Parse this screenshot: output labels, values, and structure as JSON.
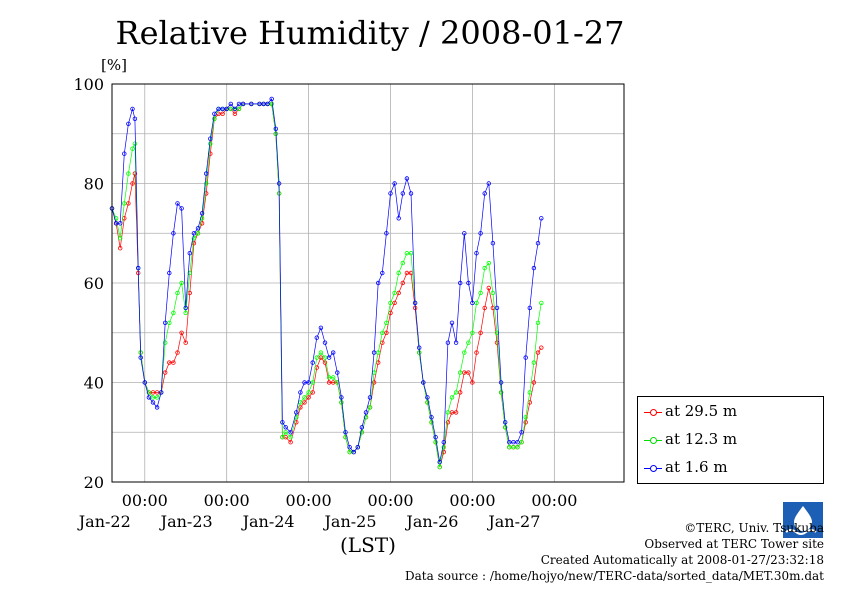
{
  "chart_data": {
    "type": "line",
    "title": "Relative Humidity / 2008-01-27",
    "ylabel": "[%]",
    "xlabel": "(LST)",
    "ylim": [
      20,
      100
    ],
    "yticks": [
      "20",
      "40",
      "60",
      "80",
      "100"
    ],
    "xlim_days": [
      21.6,
      27.85
    ],
    "xtick_time_label": "00:00",
    "xtick_dates": [
      "Jan-22",
      "Jan-23",
      "Jan-24",
      "Jan-25",
      "Jan-26",
      "Jan-27"
    ],
    "grid": true,
    "legend_position": "bottom-right",
    "series": [
      {
        "name": "at 29.5 m",
        "color": "#ff0000",
        "points": [
          [
            21.6,
            75
          ],
          [
            21.65,
            72
          ],
          [
            21.7,
            67
          ],
          [
            21.75,
            73
          ],
          [
            21.8,
            76
          ],
          [
            21.85,
            80
          ],
          [
            21.88,
            82
          ],
          [
            21.92,
            62
          ],
          [
            21.95,
            46
          ],
          [
            22.0,
            40
          ],
          [
            22.05,
            38
          ],
          [
            22.1,
            38
          ],
          [
            22.15,
            38
          ],
          [
            22.2,
            38
          ],
          [
            22.25,
            42
          ],
          [
            22.3,
            44
          ],
          [
            22.35,
            44
          ],
          [
            22.4,
            46
          ],
          [
            22.45,
            50
          ],
          [
            22.5,
            48
          ],
          [
            22.55,
            58
          ],
          [
            22.6,
            68
          ],
          [
            22.65,
            70
          ],
          [
            22.7,
            72
          ],
          [
            22.75,
            78
          ],
          [
            22.8,
            86
          ],
          [
            22.85,
            93
          ],
          [
            22.9,
            94
          ],
          [
            22.95,
            94
          ],
          [
            23.0,
            95
          ],
          [
            23.05,
            95
          ],
          [
            23.1,
            94
          ],
          [
            23.15,
            95
          ],
          [
            23.2,
            96
          ],
          [
            23.3,
            96
          ],
          [
            23.4,
            96
          ],
          [
            23.45,
            96
          ],
          [
            23.5,
            96
          ],
          [
            23.55,
            96
          ],
          [
            23.6,
            90
          ],
          [
            23.64,
            78
          ],
          [
            23.68,
            29
          ],
          [
            23.72,
            29
          ],
          [
            23.78,
            28
          ],
          [
            23.85,
            32
          ],
          [
            23.9,
            35
          ],
          [
            23.95,
            36
          ],
          [
            24.0,
            37
          ],
          [
            24.05,
            38
          ],
          [
            24.1,
            43
          ],
          [
            24.15,
            45
          ],
          [
            24.2,
            44
          ],
          [
            24.25,
            40
          ],
          [
            24.3,
            40
          ],
          [
            24.35,
            40
          ],
          [
            24.4,
            36
          ],
          [
            24.45,
            29
          ],
          [
            24.5,
            26
          ],
          [
            24.55,
            26
          ],
          [
            24.6,
            27
          ],
          [
            24.65,
            30
          ],
          [
            24.7,
            33
          ],
          [
            24.75,
            35
          ],
          [
            24.8,
            40
          ],
          [
            24.85,
            44
          ],
          [
            24.9,
            48
          ],
          [
            24.95,
            50
          ],
          [
            25.0,
            54
          ],
          [
            25.05,
            56
          ],
          [
            25.1,
            58
          ],
          [
            25.15,
            60
          ],
          [
            25.2,
            62
          ],
          [
            25.25,
            62
          ],
          [
            25.3,
            55
          ],
          [
            25.35,
            46
          ],
          [
            25.4,
            40
          ],
          [
            25.45,
            36
          ],
          [
            25.5,
            32
          ],
          [
            25.55,
            28
          ],
          [
            25.6,
            23
          ],
          [
            25.65,
            26
          ],
          [
            25.7,
            32
          ],
          [
            25.75,
            34
          ],
          [
            25.8,
            34
          ],
          [
            25.85,
            38
          ],
          [
            25.9,
            42
          ],
          [
            25.95,
            42
          ],
          [
            26.0,
            40
          ],
          [
            26.05,
            46
          ],
          [
            26.1,
            50
          ],
          [
            26.15,
            55
          ],
          [
            26.2,
            59
          ],
          [
            26.25,
            55
          ],
          [
            26.3,
            48
          ],
          [
            26.35,
            38
          ],
          [
            26.4,
            31
          ],
          [
            26.45,
            27
          ],
          [
            26.5,
            27
          ],
          [
            26.55,
            27
          ],
          [
            26.6,
            28
          ],
          [
            26.65,
            32
          ],
          [
            26.7,
            36
          ],
          [
            26.75,
            40
          ],
          [
            26.8,
            46
          ],
          [
            26.84,
            47
          ]
        ]
      },
      {
        "name": "at 12.3 m",
        "color": "#00ff00",
        "points": [
          [
            21.6,
            75
          ],
          [
            21.65,
            73
          ],
          [
            21.7,
            69
          ],
          [
            21.75,
            76
          ],
          [
            21.8,
            82
          ],
          [
            21.85,
            87
          ],
          [
            21.88,
            88
          ],
          [
            21.92,
            63
          ],
          [
            21.95,
            46
          ],
          [
            22.0,
            40
          ],
          [
            22.05,
            38
          ],
          [
            22.1,
            37
          ],
          [
            22.15,
            37
          ],
          [
            22.2,
            38
          ],
          [
            22.25,
            48
          ],
          [
            22.3,
            52
          ],
          [
            22.35,
            54
          ],
          [
            22.4,
            58
          ],
          [
            22.45,
            60
          ],
          [
            22.5,
            54
          ],
          [
            22.55,
            62
          ],
          [
            22.6,
            69
          ],
          [
            22.65,
            70
          ],
          [
            22.7,
            73
          ],
          [
            22.75,
            80
          ],
          [
            22.8,
            88
          ],
          [
            22.85,
            93
          ],
          [
            22.9,
            95
          ],
          [
            22.95,
            95
          ],
          [
            23.0,
            95
          ],
          [
            23.05,
            95
          ],
          [
            23.1,
            95
          ],
          [
            23.15,
            95
          ],
          [
            23.2,
            96
          ],
          [
            23.3,
            96
          ],
          [
            23.4,
            96
          ],
          [
            23.45,
            96
          ],
          [
            23.5,
            96
          ],
          [
            23.55,
            96
          ],
          [
            23.6,
            90
          ],
          [
            23.64,
            78
          ],
          [
            23.68,
            29
          ],
          [
            23.72,
            30
          ],
          [
            23.78,
            29
          ],
          [
            23.85,
            33
          ],
          [
            23.9,
            36
          ],
          [
            23.95,
            37
          ],
          [
            24.0,
            38
          ],
          [
            24.05,
            40
          ],
          [
            24.1,
            45
          ],
          [
            24.15,
            46
          ],
          [
            24.2,
            45
          ],
          [
            24.25,
            41
          ],
          [
            24.3,
            41
          ],
          [
            24.35,
            40
          ],
          [
            24.4,
            36
          ],
          [
            24.45,
            29
          ],
          [
            24.5,
            26
          ],
          [
            24.55,
            26
          ],
          [
            24.6,
            27
          ],
          [
            24.65,
            30
          ],
          [
            24.7,
            33
          ],
          [
            24.75,
            35
          ],
          [
            24.8,
            42
          ],
          [
            24.85,
            46
          ],
          [
            24.9,
            50
          ],
          [
            24.95,
            52
          ],
          [
            25.0,
            56
          ],
          [
            25.05,
            58
          ],
          [
            25.1,
            62
          ],
          [
            25.15,
            64
          ],
          [
            25.2,
            66
          ],
          [
            25.25,
            66
          ],
          [
            25.3,
            56
          ],
          [
            25.35,
            46
          ],
          [
            25.4,
            40
          ],
          [
            25.45,
            36
          ],
          [
            25.5,
            32
          ],
          [
            25.55,
            28
          ],
          [
            25.6,
            23
          ],
          [
            25.65,
            27
          ],
          [
            25.7,
            34
          ],
          [
            25.75,
            37
          ],
          [
            25.8,
            38
          ],
          [
            25.85,
            42
          ],
          [
            25.9,
            46
          ],
          [
            25.95,
            48
          ],
          [
            26.0,
            50
          ],
          [
            26.05,
            56
          ],
          [
            26.1,
            58
          ],
          [
            26.15,
            63
          ],
          [
            26.2,
            64
          ],
          [
            26.25,
            58
          ],
          [
            26.3,
            50
          ],
          [
            26.35,
            38
          ],
          [
            26.4,
            31
          ],
          [
            26.45,
            27
          ],
          [
            26.5,
            27
          ],
          [
            26.55,
            27
          ],
          [
            26.6,
            28
          ],
          [
            26.65,
            33
          ],
          [
            26.7,
            38
          ],
          [
            26.75,
            44
          ],
          [
            26.8,
            52
          ],
          [
            26.84,
            56
          ]
        ]
      },
      {
        "name": "at 1.6 m",
        "color": "#0000ff",
        "points": [
          [
            21.6,
            75
          ],
          [
            21.65,
            72
          ],
          [
            21.7,
            72
          ],
          [
            21.75,
            86
          ],
          [
            21.8,
            92
          ],
          [
            21.85,
            95
          ],
          [
            21.88,
            93
          ],
          [
            21.92,
            63
          ],
          [
            21.95,
            45
          ],
          [
            22.0,
            40
          ],
          [
            22.05,
            37
          ],
          [
            22.1,
            36
          ],
          [
            22.15,
            35
          ],
          [
            22.2,
            38
          ],
          [
            22.25,
            52
          ],
          [
            22.3,
            62
          ],
          [
            22.35,
            70
          ],
          [
            22.4,
            76
          ],
          [
            22.45,
            75
          ],
          [
            22.5,
            55
          ],
          [
            22.55,
            66
          ],
          [
            22.6,
            70
          ],
          [
            22.65,
            71
          ],
          [
            22.7,
            74
          ],
          [
            22.75,
            82
          ],
          [
            22.8,
            89
          ],
          [
            22.85,
            94
          ],
          [
            22.9,
            95
          ],
          [
            22.95,
            95
          ],
          [
            23.0,
            95
          ],
          [
            23.05,
            96
          ],
          [
            23.1,
            95
          ],
          [
            23.15,
            96
          ],
          [
            23.2,
            96
          ],
          [
            23.3,
            96
          ],
          [
            23.4,
            96
          ],
          [
            23.45,
            96
          ],
          [
            23.5,
            96
          ],
          [
            23.55,
            97
          ],
          [
            23.6,
            91
          ],
          [
            23.64,
            80
          ],
          [
            23.68,
            32
          ],
          [
            23.72,
            31
          ],
          [
            23.78,
            30
          ],
          [
            23.85,
            34
          ],
          [
            23.9,
            38
          ],
          [
            23.95,
            40
          ],
          [
            24.0,
            40
          ],
          [
            24.05,
            44
          ],
          [
            24.1,
            49
          ],
          [
            24.15,
            51
          ],
          [
            24.2,
            48
          ],
          [
            24.25,
            45
          ],
          [
            24.3,
            46
          ],
          [
            24.35,
            42
          ],
          [
            24.4,
            37
          ],
          [
            24.45,
            30
          ],
          [
            24.5,
            27
          ],
          [
            24.55,
            26
          ],
          [
            24.6,
            27
          ],
          [
            24.65,
            31
          ],
          [
            24.7,
            34
          ],
          [
            24.75,
            37
          ],
          [
            24.8,
            46
          ],
          [
            24.85,
            60
          ],
          [
            24.9,
            62
          ],
          [
            24.95,
            70
          ],
          [
            25.0,
            78
          ],
          [
            25.05,
            80
          ],
          [
            25.1,
            73
          ],
          [
            25.15,
            78
          ],
          [
            25.2,
            81
          ],
          [
            25.25,
            78
          ],
          [
            25.3,
            56
          ],
          [
            25.35,
            47
          ],
          [
            25.4,
            40
          ],
          [
            25.45,
            37
          ],
          [
            25.5,
            33
          ],
          [
            25.55,
            29
          ],
          [
            25.6,
            24
          ],
          [
            25.65,
            28
          ],
          [
            25.7,
            48
          ],
          [
            25.75,
            52
          ],
          [
            25.8,
            48
          ],
          [
            25.85,
            60
          ],
          [
            25.9,
            70
          ],
          [
            25.95,
            60
          ],
          [
            26.0,
            56
          ],
          [
            26.05,
            66
          ],
          [
            26.1,
            70
          ],
          [
            26.15,
            78
          ],
          [
            26.2,
            80
          ],
          [
            26.25,
            68
          ],
          [
            26.3,
            55
          ],
          [
            26.35,
            40
          ],
          [
            26.4,
            32
          ],
          [
            26.45,
            28
          ],
          [
            26.5,
            28
          ],
          [
            26.55,
            28
          ],
          [
            26.6,
            30
          ],
          [
            26.65,
            45
          ],
          [
            26.7,
            55
          ],
          [
            26.75,
            63
          ],
          [
            26.8,
            68
          ],
          [
            26.84,
            73
          ]
        ]
      }
    ]
  },
  "credits": {
    "copyright": "©TERC, Univ. Tsukuba",
    "site": "Observed at TERC Tower site",
    "created": "Created Automatically at 2008-01-27/23:32:18",
    "source": "Data source : /home/hojyo/new/TERC-data/sorted_data/MET.30m.dat"
  },
  "logo": {
    "icon": "terc-logo-icon",
    "text": "TERC",
    "color": "#1d5fb4"
  }
}
